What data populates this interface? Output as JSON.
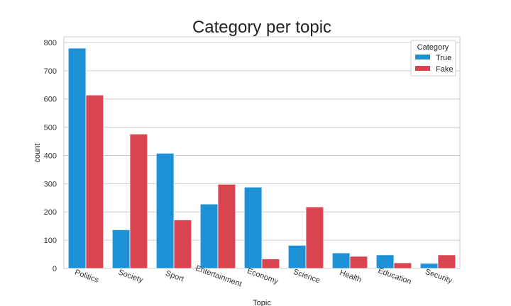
{
  "chart_data": {
    "type": "bar",
    "title": "Category per topic",
    "xlabel": "Topic",
    "ylabel": "count",
    "ylim": [
      0,
      820
    ],
    "yticks": [
      0,
      100,
      200,
      300,
      400,
      500,
      600,
      700,
      800
    ],
    "grid": true,
    "legend": {
      "title": "Category",
      "placement": "top-right"
    },
    "categories": [
      "Politics",
      "Society",
      "Sport",
      "Entertainment",
      "Economy",
      "Science",
      "Health",
      "Education",
      "Security"
    ],
    "series": [
      {
        "name": "True",
        "color": "#1e90d6",
        "values": [
          780,
          137,
          408,
          228,
          288,
          82,
          55,
          48,
          18
        ]
      },
      {
        "name": "Fake",
        "color": "#d9444f",
        "values": [
          614,
          476,
          172,
          298,
          34,
          218,
          43,
          20,
          48
        ]
      }
    ]
  }
}
